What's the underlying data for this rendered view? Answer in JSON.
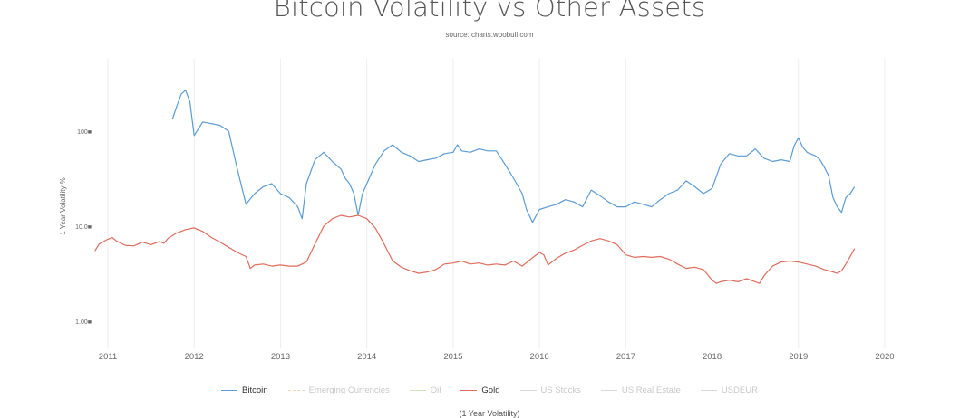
{
  "chart_data": {
    "type": "line",
    "title": "Bitcoin Volatility vs Other Assets",
    "subtitle": "source: charts.woobull.com",
    "ylabel": "1 Year Volatility %",
    "xlabel": "",
    "bottom_caption": "(1 Year Volatility)",
    "y_scale": "log",
    "ylim": [
      0.6,
      450
    ],
    "xlim": [
      2010.85,
      2020.1
    ],
    "x_ticks": [
      "2011",
      "2012",
      "2013",
      "2014",
      "2015",
      "2016",
      "2017",
      "2018",
      "2019",
      "2020"
    ],
    "y_ticks": [
      "1.00■",
      "10.0■",
      "100■"
    ],
    "y_tick_values": [
      1,
      10,
      100
    ],
    "grid": "vertical",
    "legend_position": "bottom",
    "series": [
      {
        "name": "Bitcoin",
        "color": "#5b9bd5",
        "visible": true,
        "points": [
          [
            2011.75,
            135
          ],
          [
            2011.8,
            185
          ],
          [
            2011.85,
            245
          ],
          [
            2011.9,
            270
          ],
          [
            2011.95,
            205
          ],
          [
            2012.0,
            90
          ],
          [
            2012.1,
            125
          ],
          [
            2012.2,
            120
          ],
          [
            2012.3,
            115
          ],
          [
            2012.4,
            100
          ],
          [
            2012.5,
            40
          ],
          [
            2012.6,
            17
          ],
          [
            2012.7,
            22
          ],
          [
            2012.8,
            26
          ],
          [
            2012.9,
            28
          ],
          [
            2013.0,
            22
          ],
          [
            2013.1,
            20
          ],
          [
            2013.2,
            16
          ],
          [
            2013.25,
            12
          ],
          [
            2013.3,
            28
          ],
          [
            2013.4,
            50
          ],
          [
            2013.5,
            60
          ],
          [
            2013.6,
            48
          ],
          [
            2013.7,
            40
          ],
          [
            2013.75,
            32
          ],
          [
            2013.8,
            28
          ],
          [
            2013.85,
            22
          ],
          [
            2013.9,
            13
          ],
          [
            2013.95,
            22
          ],
          [
            2014.0,
            28
          ],
          [
            2014.1,
            45
          ],
          [
            2014.2,
            62
          ],
          [
            2014.3,
            72
          ],
          [
            2014.4,
            60
          ],
          [
            2014.5,
            55
          ],
          [
            2014.6,
            48
          ],
          [
            2014.7,
            50
          ],
          [
            2014.8,
            52
          ],
          [
            2014.9,
            58
          ],
          [
            2015.0,
            60
          ],
          [
            2015.05,
            72
          ],
          [
            2015.1,
            62
          ],
          [
            2015.2,
            60
          ],
          [
            2015.3,
            65
          ],
          [
            2015.4,
            62
          ],
          [
            2015.5,
            62
          ],
          [
            2015.6,
            45
          ],
          [
            2015.7,
            32
          ],
          [
            2015.8,
            22
          ],
          [
            2015.85,
            15
          ],
          [
            2015.92,
            11
          ],
          [
            2016.0,
            15
          ],
          [
            2016.1,
            16
          ],
          [
            2016.2,
            17
          ],
          [
            2016.3,
            19
          ],
          [
            2016.4,
            18
          ],
          [
            2016.5,
            16
          ],
          [
            2016.6,
            24
          ],
          [
            2016.7,
            21
          ],
          [
            2016.8,
            18
          ],
          [
            2016.9,
            16
          ],
          [
            2017.0,
            16
          ],
          [
            2017.1,
            18
          ],
          [
            2017.2,
            17
          ],
          [
            2017.3,
            16
          ],
          [
            2017.4,
            19
          ],
          [
            2017.5,
            22
          ],
          [
            2017.6,
            24
          ],
          [
            2017.7,
            30
          ],
          [
            2017.8,
            26
          ],
          [
            2017.9,
            22
          ],
          [
            2018.0,
            25
          ],
          [
            2018.1,
            45
          ],
          [
            2018.2,
            58
          ],
          [
            2018.3,
            55
          ],
          [
            2018.4,
            55
          ],
          [
            2018.5,
            65
          ],
          [
            2018.6,
            52
          ],
          [
            2018.7,
            48
          ],
          [
            2018.8,
            50
          ],
          [
            2018.9,
            48
          ],
          [
            2018.95,
            70
          ],
          [
            2019.0,
            85
          ],
          [
            2019.05,
            68
          ],
          [
            2019.1,
            60
          ],
          [
            2019.2,
            55
          ],
          [
            2019.25,
            50
          ],
          [
            2019.3,
            42
          ],
          [
            2019.35,
            34
          ],
          [
            2019.4,
            20
          ],
          [
            2019.45,
            16
          ],
          [
            2019.5,
            14
          ],
          [
            2019.55,
            20
          ],
          [
            2019.6,
            22
          ],
          [
            2019.65,
            26
          ]
        ]
      },
      {
        "name": "Emerging Currencies",
        "color": "#f4b183",
        "visible": false,
        "points": []
      },
      {
        "name": "Oil",
        "color": "#a9d18e",
        "visible": false,
        "points": []
      },
      {
        "name": "Gold",
        "color": "#e06c5c",
        "visible": true,
        "points": [
          [
            2010.85,
            5.5
          ],
          [
            2010.9,
            6.5
          ],
          [
            2011.0,
            7.3
          ],
          [
            2011.05,
            7.6
          ],
          [
            2011.1,
            7.0
          ],
          [
            2011.2,
            6.3
          ],
          [
            2011.3,
            6.2
          ],
          [
            2011.4,
            6.8
          ],
          [
            2011.5,
            6.4
          ],
          [
            2011.6,
            6.9
          ],
          [
            2011.65,
            6.6
          ],
          [
            2011.7,
            7.5
          ],
          [
            2011.8,
            8.5
          ],
          [
            2011.9,
            9.2
          ],
          [
            2012.0,
            9.6
          ],
          [
            2012.1,
            8.8
          ],
          [
            2012.2,
            7.6
          ],
          [
            2012.3,
            6.8
          ],
          [
            2012.4,
            6.0
          ],
          [
            2012.5,
            5.3
          ],
          [
            2012.6,
            4.8
          ],
          [
            2012.65,
            3.6
          ],
          [
            2012.7,
            3.9
          ],
          [
            2012.8,
            4.0
          ],
          [
            2012.9,
            3.8
          ],
          [
            2013.0,
            3.9
          ],
          [
            2013.1,
            3.8
          ],
          [
            2013.2,
            3.8
          ],
          [
            2013.3,
            4.2
          ],
          [
            2013.4,
            6.5
          ],
          [
            2013.5,
            10.0
          ],
          [
            2013.6,
            12.0
          ],
          [
            2013.7,
            13.0
          ],
          [
            2013.8,
            12.5
          ],
          [
            2013.9,
            13.0
          ],
          [
            2014.0,
            12.0
          ],
          [
            2014.1,
            9.5
          ],
          [
            2014.2,
            6.5
          ],
          [
            2014.3,
            4.3
          ],
          [
            2014.4,
            3.7
          ],
          [
            2014.5,
            3.4
          ],
          [
            2014.6,
            3.2
          ],
          [
            2014.7,
            3.3
          ],
          [
            2014.8,
            3.5
          ],
          [
            2014.9,
            4.0
          ],
          [
            2015.0,
            4.1
          ],
          [
            2015.1,
            4.3
          ],
          [
            2015.2,
            4.0
          ],
          [
            2015.3,
            4.1
          ],
          [
            2015.4,
            3.9
          ],
          [
            2015.5,
            4.0
          ],
          [
            2015.6,
            3.9
          ],
          [
            2015.7,
            4.3
          ],
          [
            2015.8,
            3.8
          ],
          [
            2015.9,
            4.5
          ],
          [
            2016.0,
            5.3
          ],
          [
            2016.05,
            5.0
          ],
          [
            2016.1,
            3.9
          ],
          [
            2016.2,
            4.6
          ],
          [
            2016.3,
            5.2
          ],
          [
            2016.4,
            5.6
          ],
          [
            2016.5,
            6.3
          ],
          [
            2016.6,
            7.0
          ],
          [
            2016.7,
            7.4
          ],
          [
            2016.8,
            7.0
          ],
          [
            2016.9,
            6.4
          ],
          [
            2017.0,
            5.0
          ],
          [
            2017.1,
            4.7
          ],
          [
            2017.2,
            4.8
          ],
          [
            2017.3,
            4.7
          ],
          [
            2017.4,
            4.8
          ],
          [
            2017.5,
            4.5
          ],
          [
            2017.6,
            4.0
          ],
          [
            2017.7,
            3.6
          ],
          [
            2017.8,
            3.7
          ],
          [
            2017.9,
            3.5
          ],
          [
            2018.0,
            2.7
          ],
          [
            2018.05,
            2.5
          ],
          [
            2018.1,
            2.6
          ],
          [
            2018.2,
            2.7
          ],
          [
            2018.3,
            2.6
          ],
          [
            2018.4,
            2.8
          ],
          [
            2018.5,
            2.6
          ],
          [
            2018.55,
            2.5
          ],
          [
            2018.6,
            3.0
          ],
          [
            2018.7,
            3.8
          ],
          [
            2018.8,
            4.2
          ],
          [
            2018.9,
            4.3
          ],
          [
            2019.0,
            4.2
          ],
          [
            2019.1,
            4.0
          ],
          [
            2019.2,
            3.8
          ],
          [
            2019.3,
            3.5
          ],
          [
            2019.4,
            3.3
          ],
          [
            2019.45,
            3.2
          ],
          [
            2019.5,
            3.4
          ],
          [
            2019.55,
            4.0
          ],
          [
            2019.6,
            4.8
          ],
          [
            2019.65,
            5.8
          ]
        ]
      },
      {
        "name": "US Stocks",
        "color": "#d9d9d9",
        "visible": false,
        "points": []
      },
      {
        "name": "US Real Estate",
        "color": "#d9d9d9",
        "visible": false,
        "points": []
      },
      {
        "name": "USDEUR",
        "color": "#d9d9d9",
        "visible": false,
        "points": []
      }
    ]
  }
}
